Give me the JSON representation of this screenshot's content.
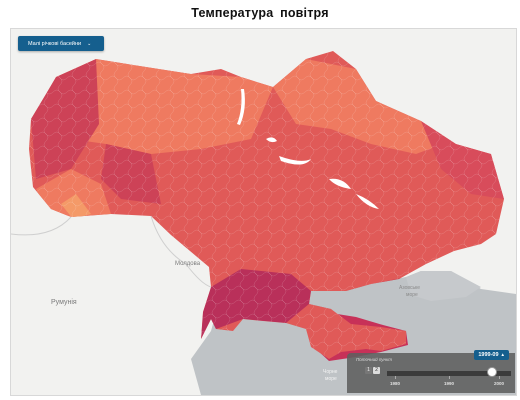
{
  "title": "Температура  повітря",
  "layer_selector": {
    "label": "Малі річкові басейни",
    "icon": "chevron-down-icon"
  },
  "labels": {
    "moldova": "Молдова",
    "romania": "Румунія",
    "azov_sea_line1": "Азовське",
    "azov_sea_line2": "море",
    "black_sea_line1": "Чорне",
    "black_sea_line2": "море"
  },
  "timeline": {
    "caption": "Поточний пункт",
    "selected_period": "1999-09",
    "pages": [
      "1",
      "2"
    ],
    "active_page": "2",
    "tick_labels": [
      "1980",
      "1990",
      "2000"
    ]
  },
  "colors": {
    "warm_dark": "#cd4257",
    "warm_main": "#e05a58",
    "warm_light": "#ef7a60",
    "warm_lightest": "#f49a68",
    "south_hot": "#b9305a",
    "sea": "#bfc3c6",
    "neighbor_land": "#f2f2f0",
    "badge": "#155f8e"
  }
}
